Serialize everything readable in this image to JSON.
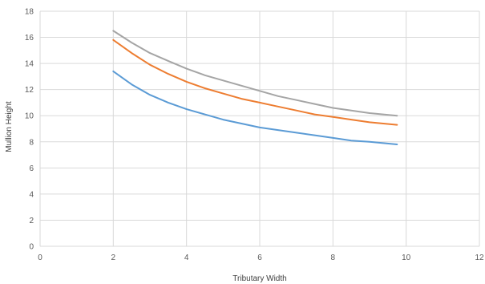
{
  "chart_data": {
    "type": "line",
    "title": "",
    "xlabel": "Tributary Width",
    "ylabel": "Mullion Height",
    "xlim": [
      0,
      12
    ],
    "ylim": [
      0,
      18
    ],
    "x_ticks": [
      0,
      2,
      4,
      6,
      8,
      10,
      12
    ],
    "y_ticks": [
      0,
      2,
      4,
      6,
      8,
      10,
      12,
      14,
      16,
      18
    ],
    "grid": true,
    "legend": "none",
    "series": [
      {
        "color": "#a5a5a5",
        "x": [
          2,
          2.5,
          3,
          3.5,
          4,
          4.5,
          5,
          5.5,
          6,
          6.5,
          7,
          7.5,
          8,
          8.5,
          9,
          9.75
        ],
        "values": [
          16.5,
          15.6,
          14.8,
          14.2,
          13.6,
          13.1,
          12.7,
          12.3,
          11.9,
          11.5,
          11.2,
          10.9,
          10.6,
          10.4,
          10.2,
          10.0
        ]
      },
      {
        "color": "#ed7d31",
        "x": [
          2,
          2.5,
          3,
          3.5,
          4,
          4.5,
          5,
          5.5,
          6,
          6.5,
          7,
          7.5,
          8,
          8.5,
          9,
          9.75
        ],
        "values": [
          15.8,
          14.8,
          13.9,
          13.2,
          12.6,
          12.1,
          11.7,
          11.3,
          11.0,
          10.7,
          10.4,
          10.1,
          9.9,
          9.7,
          9.5,
          9.3
        ]
      },
      {
        "color": "#5b9bd5",
        "x": [
          2,
          2.5,
          3,
          3.5,
          4,
          4.5,
          5,
          5.5,
          6,
          6.5,
          7,
          7.5,
          8,
          8.5,
          9,
          9.75
        ],
        "values": [
          13.4,
          12.4,
          11.6,
          11.0,
          10.5,
          10.1,
          9.7,
          9.4,
          9.1,
          8.9,
          8.7,
          8.5,
          8.3,
          8.1,
          8.0,
          7.8
        ]
      }
    ]
  }
}
